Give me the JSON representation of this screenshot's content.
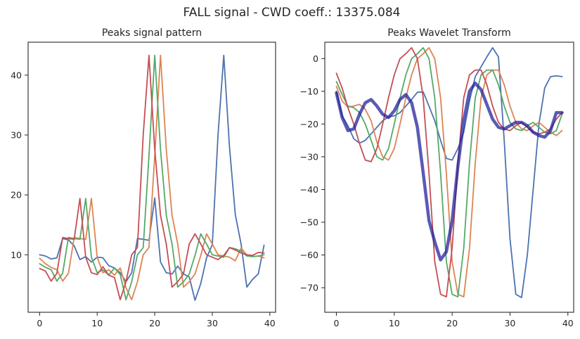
{
  "figure": {
    "suptitle": "FALL signal   -   CWD coeff.: 13375.084"
  },
  "colors": {
    "blue": "#4c72b0",
    "orange": "#dd8452",
    "green": "#55a868",
    "red": "#c44e52",
    "navy": "#1a1a99"
  },
  "chart_data": [
    {
      "type": "line",
      "title": "Peaks signal pattern",
      "xlabel": "",
      "ylabel": "",
      "xlim": [
        -2,
        41
      ],
      "ylim": [
        0.4,
        45.5
      ],
      "xticks": [
        0,
        10,
        20,
        30,
        40
      ],
      "yticks": [
        10,
        20,
        30,
        40
      ],
      "grid": false,
      "x": [
        0,
        1,
        2,
        3,
        4,
        5,
        6,
        7,
        8,
        9,
        10,
        11,
        12,
        13,
        14,
        15,
        16,
        17,
        18,
        19,
        20,
        21,
        22,
        23,
        24,
        25,
        26,
        27,
        28,
        29,
        30,
        31,
        32,
        33,
        34,
        35,
        36,
        37,
        38,
        39
      ],
      "series": [
        {
          "color": "blue",
          "values": [
            10.0,
            9.8,
            9.3,
            9.5,
            12.7,
            12.5,
            11.5,
            9.2,
            9.7,
            8.8,
            9.6,
            9.5,
            8.2,
            7.8,
            7.0,
            5.5,
            7.0,
            12.7,
            12.6,
            12.4,
            19.5,
            8.8,
            7.0,
            6.8,
            8.1,
            6.8,
            6.3,
            2.4,
            5.2,
            9.5,
            11.7,
            30.0,
            43.3,
            27.9,
            16.7,
            11.8,
            4.6,
            5.9,
            6.8,
            11.6
          ]
        },
        {
          "color": "orange",
          "values": [
            9.4,
            8.5,
            7.9,
            7.5,
            5.6,
            6.9,
            12.9,
            12.7,
            12.6,
            19.4,
            9.6,
            7.0,
            7.5,
            6.6,
            7.8,
            4.5,
            2.5,
            5.5,
            10.0,
            11.2,
            26.5,
            43.3,
            27.6,
            16.6,
            11.8,
            4.6,
            5.5,
            6.8,
            9.9,
            13.5,
            11.8,
            10.0,
            9.8,
            9.6,
            9.0,
            11.1,
            10.0,
            9.7,
            9.8,
            9.5
          ]
        },
        {
          "color": "green",
          "values": [
            8.5,
            7.9,
            7.5,
            5.6,
            6.9,
            12.9,
            12.7,
            12.6,
            19.4,
            9.6,
            7.0,
            7.5,
            6.6,
            7.8,
            6.7,
            2.5,
            5.5,
            10.0,
            11.2,
            26.5,
            43.3,
            27.6,
            16.6,
            11.8,
            4.6,
            5.5,
            6.8,
            9.9,
            13.5,
            11.8,
            10.0,
            9.8,
            9.6,
            11.2,
            11.0,
            10.6,
            9.8,
            9.7,
            9.8,
            10.0
          ]
        },
        {
          "color": "red",
          "values": [
            7.7,
            7.3,
            5.6,
            6.9,
            12.9,
            12.7,
            12.6,
            19.4,
            9.6,
            7.0,
            6.7,
            8.0,
            6.6,
            6.2,
            2.5,
            5.5,
            10.0,
            11.2,
            30.0,
            43.3,
            27.6,
            16.6,
            11.8,
            4.6,
            5.5,
            6.8,
            11.8,
            13.5,
            11.8,
            10.0,
            9.6,
            9.2,
            9.9,
            11.2,
            10.8,
            10.3,
            10.0,
            9.9,
            10.4,
            10.3
          ]
        }
      ]
    },
    {
      "type": "line",
      "title": "Peaks Wavelet Transform",
      "xlabel": "",
      "ylabel": "",
      "xlim": [
        -2,
        41
      ],
      "ylim": [
        -77.5,
        5
      ],
      "xticks": [
        0,
        10,
        20,
        30,
        40
      ],
      "yticks": [
        0,
        -10,
        -20,
        -30,
        -40,
        -50,
        -60,
        -70
      ],
      "grid": false,
      "x": [
        0,
        1,
        2,
        3,
        4,
        5,
        6,
        7,
        8,
        9,
        10,
        11,
        12,
        13,
        14,
        15,
        16,
        17,
        18,
        19,
        20,
        21,
        22,
        23,
        24,
        25,
        26,
        27,
        28,
        29,
        30,
        31,
        32,
        33,
        34,
        35,
        36,
        37,
        38,
        39
      ],
      "series": [
        {
          "color": "blue",
          "values": [
            -10.0,
            -17.5,
            -20.5,
            -24.5,
            -25.8,
            -25.0,
            -23.0,
            -21.0,
            -19.0,
            -17.8,
            -17.5,
            -16.5,
            -14.5,
            -12.5,
            -10.3,
            -10.2,
            -14.5,
            -19.0,
            -25.0,
            -30.5,
            -31.0,
            -27.5,
            -22.5,
            -13.0,
            -5.5,
            -2.5,
            0.5,
            3.3,
            0.5,
            -25.0,
            -55.0,
            -72.0,
            -73.0,
            -60.0,
            -40.0,
            -20.0,
            -9.0,
            -5.5,
            -5.3,
            -5.5
          ]
        },
        {
          "color": "orange",
          "values": [
            -8.5,
            -13.0,
            -14.8,
            -14.5,
            -14.0,
            -15.5,
            -19.0,
            -25.5,
            -30.0,
            -31.0,
            -27.5,
            -20.0,
            -12.0,
            -5.0,
            0.0,
            1.5,
            3.3,
            0.0,
            -12.0,
            -35.0,
            -62.0,
            -72.0,
            -72.8,
            -58.0,
            -32.0,
            -12.0,
            -5.0,
            -3.5,
            -3.5,
            -8.0,
            -14.5,
            -19.5,
            -21.5,
            -22.0,
            -20.5,
            -19.5,
            -21.0,
            -22.5,
            -23.5,
            -22.0
          ]
        },
        {
          "color": "green",
          "values": [
            -7.0,
            -11.0,
            -14.5,
            -15.0,
            -16.5,
            -20.0,
            -25.0,
            -30.0,
            -31.0,
            -27.5,
            -20.0,
            -12.0,
            -5.0,
            0.0,
            1.5,
            3.3,
            0.0,
            -12.0,
            -35.0,
            -62.0,
            -72.0,
            -72.8,
            -58.0,
            -32.0,
            -12.0,
            -5.0,
            -3.5,
            -3.5,
            -8.0,
            -14.5,
            -19.5,
            -21.5,
            -22.0,
            -20.5,
            -19.5,
            -21.0,
            -22.5,
            -23.0,
            -22.0,
            -17.0
          ]
        },
        {
          "color": "red",
          "values": [
            -4.5,
            -9.0,
            -15.0,
            -20.0,
            -26.0,
            -31.0,
            -31.5,
            -27.5,
            -20.0,
            -12.0,
            -5.0,
            0.0,
            1.5,
            3.3,
            0.0,
            -12.0,
            -35.0,
            -62.0,
            -72.0,
            -72.8,
            -58.0,
            -32.0,
            -12.0,
            -5.0,
            -3.5,
            -3.5,
            -8.0,
            -14.5,
            -19.5,
            -21.5,
            -22.0,
            -20.5,
            -19.5,
            -21.0,
            -22.5,
            -23.0,
            -22.5,
            -21.5,
            -18.5,
            -16.5
          ]
        },
        {
          "color": "navy",
          "overlay": true,
          "values": [
            -10.5,
            -18.0,
            -22.0,
            -21.5,
            -17.0,
            -13.5,
            -12.5,
            -14.5,
            -17.0,
            -18.0,
            -16.0,
            -12.5,
            -11.0,
            -13.5,
            -21.0,
            -35.0,
            -49.5,
            -56.0,
            -61.5,
            -59.0,
            -49.5,
            -33.0,
            -19.0,
            -10.0,
            -7.5,
            -9.5,
            -14.0,
            -18.5,
            -21.0,
            -21.5,
            -20.5,
            -19.5,
            -19.5,
            -20.5,
            -22.5,
            -23.5,
            -24.0,
            -22.0,
            -16.5,
            -16.5
          ]
        }
      ]
    }
  ]
}
